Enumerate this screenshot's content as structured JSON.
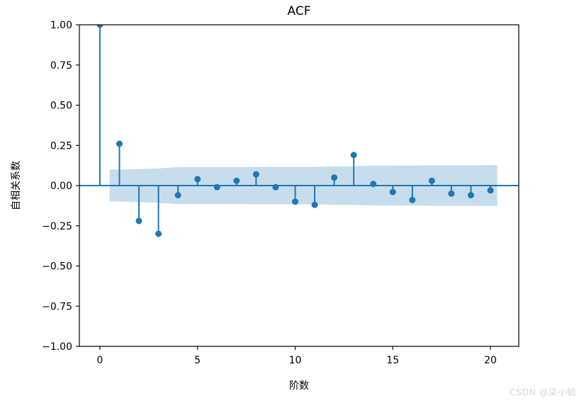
{
  "watermark": {
    "text": "CSDN @柒小毓"
  },
  "colors": {
    "accent": "#1f77b4",
    "band_fill": "#1f77b4",
    "band_opacity": 0.25,
    "spine": "#000000",
    "text": "#000000",
    "watermark": "#d7d7d7"
  },
  "chart_data": {
    "type": "stem",
    "title": "ACF",
    "xlabel": "阶数",
    "ylabel": "自相关系数",
    "x": [
      0,
      1,
      2,
      3,
      4,
      5,
      6,
      7,
      8,
      9,
      10,
      11,
      12,
      13,
      14,
      15,
      16,
      17,
      18,
      19,
      20
    ],
    "values": [
      1.0,
      0.26,
      -0.22,
      -0.3,
      -0.06,
      0.04,
      -0.01,
      0.03,
      0.07,
      -0.01,
      -0.1,
      -0.12,
      0.05,
      0.19,
      0.01,
      -0.04,
      -0.09,
      0.03,
      -0.05,
      -0.06,
      -0.03
    ],
    "conf_band": {
      "x": [
        0.5,
        1,
        2,
        3,
        4,
        5,
        6,
        7,
        8,
        9,
        10,
        11,
        12,
        13,
        14,
        15,
        16,
        17,
        18,
        19,
        20,
        20.35
      ],
      "upper": [
        0.099,
        0.099,
        0.103,
        0.107,
        0.115,
        0.115,
        0.115,
        0.115,
        0.116,
        0.116,
        0.116,
        0.117,
        0.119,
        0.12,
        0.124,
        0.124,
        0.125,
        0.126,
        0.126,
        0.126,
        0.127,
        0.127
      ],
      "lower": [
        -0.099,
        -0.099,
        -0.103,
        -0.107,
        -0.115,
        -0.115,
        -0.115,
        -0.115,
        -0.116,
        -0.116,
        -0.116,
        -0.117,
        -0.119,
        -0.12,
        -0.124,
        -0.124,
        -0.125,
        -0.126,
        -0.126,
        -0.126,
        -0.127,
        -0.127
      ]
    },
    "xlim": [
      -1.05,
      21.45
    ],
    "ylim": [
      -1.0,
      1.0
    ],
    "xticks": [
      0,
      5,
      10,
      15,
      20
    ],
    "xtick_labels": [
      "0",
      "5",
      "10",
      "15",
      "20"
    ],
    "yticks": [
      1.0,
      0.75,
      0.5,
      0.25,
      0.0,
      -0.25,
      -0.5,
      -0.75,
      -1.0
    ],
    "ytick_labels": [
      "1.00",
      "0.75",
      "0.50",
      "0.25",
      "0.00",
      "−0.25",
      "−0.50",
      "−0.75",
      "−1.00"
    ],
    "grid": false,
    "legend": null
  }
}
